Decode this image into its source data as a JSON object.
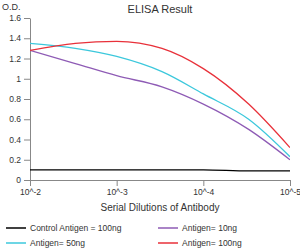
{
  "chart_data": {
    "type": "line",
    "title": "ELISA Result",
    "x_label": "Serial Dilutions of Antibody",
    "y_label": "O.D.",
    "x": [
      0.01,
      0.003,
      0.001,
      0.0003,
      0.0001,
      3e-05,
      1e-05
    ],
    "series": [
      {
        "name": "Control Antigen = 100ng",
        "color": "#000000",
        "values": [
          0.1,
          0.1,
          0.1,
          0.1,
          0.1,
          0.09,
          0.09
        ]
      },
      {
        "name": "Antigen= 10ng",
        "color": "#8e5bb5",
        "values": [
          1.28,
          1.15,
          1.03,
          0.92,
          0.75,
          0.5,
          0.2
        ]
      },
      {
        "name": "Antigen= 50ng",
        "color": "#3cc8dc",
        "values": [
          1.35,
          1.3,
          1.22,
          1.07,
          0.85,
          0.6,
          0.23
        ]
      },
      {
        "name": "Antigen= 100ng",
        "color": "#e8313a",
        "values": [
          1.28,
          1.35,
          1.37,
          1.3,
          1.1,
          0.75,
          0.32
        ]
      }
    ],
    "xlim": [
      0.01,
      1e-05
    ],
    "xticks": [
      {
        "value": 0.01,
        "label": "10^-2"
      },
      {
        "value": 0.001,
        "label": "10^-3"
      },
      {
        "value": 0.0001,
        "label": "10^-4"
      },
      {
        "value": 1e-05,
        "label": "10^-5"
      }
    ],
    "ylim": [
      0,
      1.6
    ],
    "yticks": [
      0,
      0.2,
      0.4,
      0.6,
      0.8,
      1,
      1.2,
      1.4,
      1.6
    ],
    "log": "x",
    "grid": false,
    "legend": "bottom"
  }
}
